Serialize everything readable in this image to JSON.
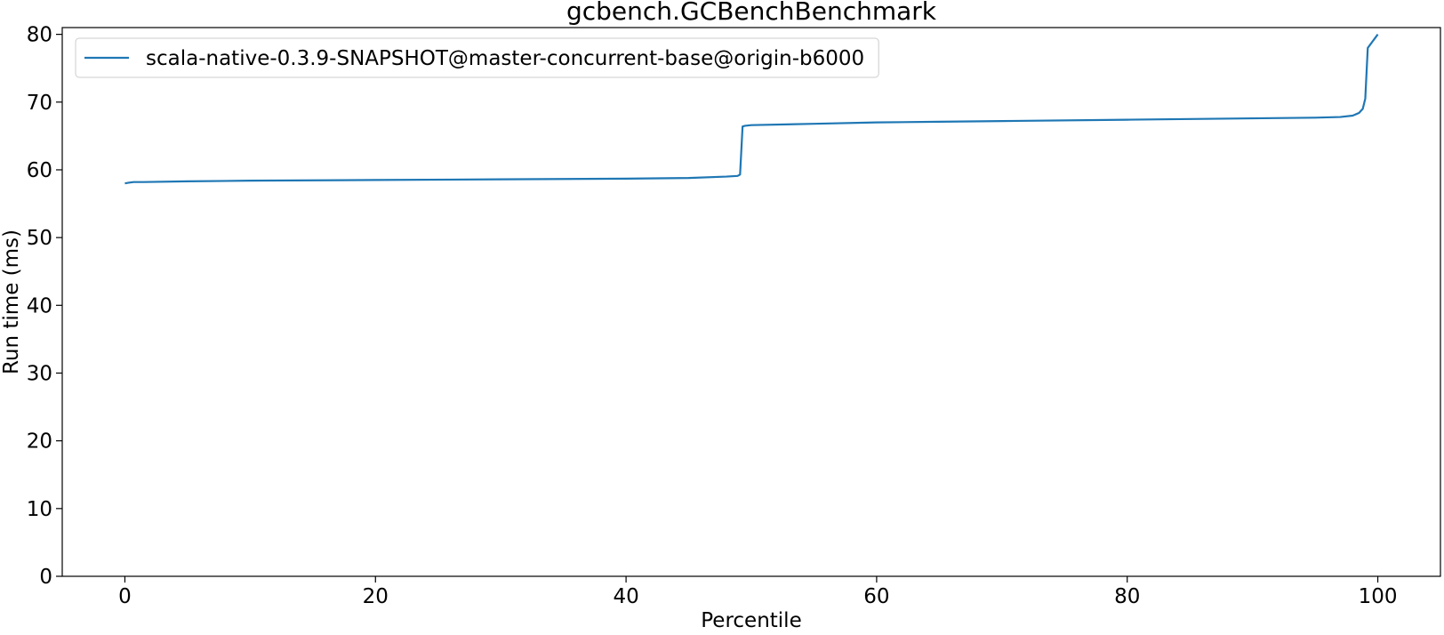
{
  "chart_data": {
    "type": "line",
    "title": "gcbench.GCBenchBenchmark",
    "xlabel": "Percentile",
    "ylabel": "Run time (ms)",
    "xlim": [
      -5,
      105
    ],
    "ylim": [
      0,
      81
    ],
    "xticks": [
      0,
      20,
      40,
      60,
      80,
      100
    ],
    "yticks": [
      0,
      10,
      20,
      30,
      40,
      50,
      60,
      70,
      80
    ],
    "grid": false,
    "legend_position": "top-left",
    "series": [
      {
        "name": "scala-native-0.3.9-SNAPSHOT@master-concurrent-base@origin-b6000",
        "color": "#1f77b4",
        "x": [
          0,
          0.3,
          0.7,
          1.5,
          5,
          10,
          20,
          30,
          40,
          45,
          48,
          48.9,
          49.1,
          49.3,
          49.5,
          50,
          55,
          60,
          65,
          70,
          80,
          90,
          95,
          97,
          98,
          98.5,
          98.8,
          99,
          99.2,
          99.4,
          99.6,
          99.8,
          100
        ],
        "y": [
          58.0,
          58.1,
          58.2,
          58.2,
          58.3,
          58.4,
          58.5,
          58.6,
          58.7,
          58.8,
          59.0,
          59.1,
          59.3,
          66.4,
          66.5,
          66.6,
          66.8,
          67.0,
          67.1,
          67.2,
          67.4,
          67.6,
          67.7,
          67.8,
          68.0,
          68.4,
          69.0,
          70.5,
          78.0,
          78.5,
          79.0,
          79.5,
          80.0
        ]
      }
    ]
  }
}
